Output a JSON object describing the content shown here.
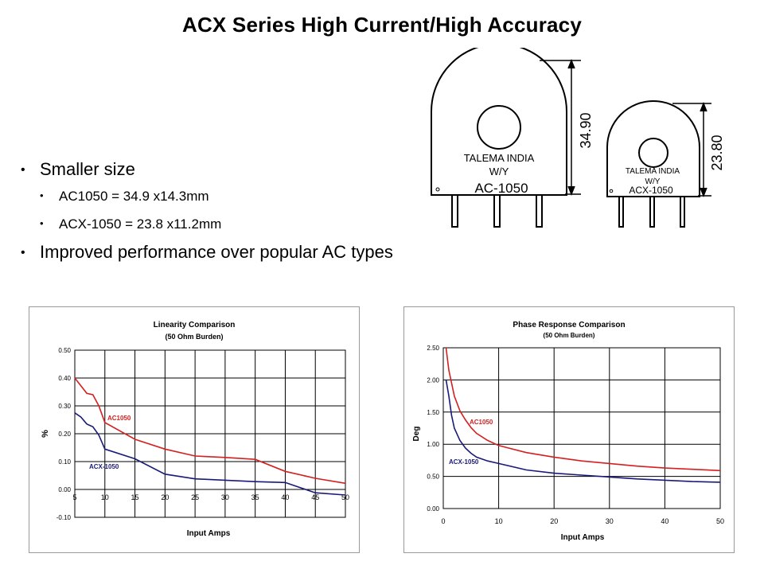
{
  "slide": {
    "title": "ACX Series High Current/High Accuracy",
    "bullets": [
      {
        "text": "Smaller size",
        "level": 1
      },
      {
        "text": "AC1050 = 34.9 x14.3mm",
        "level": 2
      },
      {
        "text": "ACX-1050 = 23.8 x11.2mm",
        "level": 2
      },
      {
        "text": "Improved performance over popular AC types",
        "level": 1
      }
    ]
  },
  "drawing": {
    "large": {
      "line1": "TALEMA INDIA",
      "line2": "W/Y",
      "model": "AC-1050",
      "dimension": "34.90"
    },
    "small": {
      "line1": "TALEMA INDIA",
      "line2": "W/Y",
      "model": "ACX-1050",
      "dimension": "23.80"
    }
  },
  "colors": {
    "ac1050": "#d42020",
    "acx1050": "#1a1a7a",
    "grid": "#000000"
  },
  "chart_data": [
    {
      "type": "line",
      "title": "Linearity Comparison",
      "subtitle": "(50 Ohm Burden)",
      "xlabel": "Input Amps",
      "ylabel": "%",
      "xlim": [
        5,
        50
      ],
      "ylim": [
        -0.1,
        0.5
      ],
      "xticks": [
        "5",
        "10",
        "15",
        "20",
        "25",
        "30",
        "35",
        "40",
        "45",
        "50"
      ],
      "yticks": [
        "0.50",
        "0.40",
        "0.30",
        "0.20",
        "0.10",
        "0.00",
        "-0.10"
      ],
      "grid": true,
      "series": [
        {
          "name": "AC1050",
          "color": "#d42020",
          "x": [
            5,
            7,
            8,
            9,
            10,
            15,
            20,
            25,
            30,
            35,
            40,
            45,
            50
          ],
          "y": [
            0.4,
            0.345,
            0.34,
            0.3,
            0.24,
            0.18,
            0.145,
            0.12,
            0.115,
            0.108,
            0.065,
            0.04,
            0.022
          ]
        },
        {
          "name": "ACX-1050",
          "color": "#1a1a7a",
          "x": [
            5,
            6,
            7,
            8,
            9,
            10,
            15,
            20,
            25,
            30,
            35,
            40,
            45,
            50
          ],
          "y": [
            0.275,
            0.26,
            0.235,
            0.225,
            0.195,
            0.145,
            0.11,
            0.055,
            0.038,
            0.033,
            0.028,
            0.025,
            -0.012,
            -0.02
          ]
        }
      ]
    },
    {
      "type": "line",
      "title": "Phase Response Comparison",
      "subtitle": "(50 Ohm Burden)",
      "xlabel": "Input Amps",
      "ylabel": "Deg",
      "xlim": [
        0,
        50
      ],
      "ylim": [
        0.0,
        2.5
      ],
      "xticks": [
        "0",
        "10",
        "20",
        "30",
        "40",
        "50"
      ],
      "yticks": [
        "2.50",
        "2.00",
        "1.50",
        "1.00",
        "0.50",
        "0.00"
      ],
      "grid": true,
      "series": [
        {
          "name": "AC1050",
          "color": "#d42020",
          "x": [
            0.5,
            1,
            2,
            3,
            4,
            5,
            6,
            8,
            10,
            15,
            20,
            25,
            30,
            35,
            40,
            45,
            50
          ],
          "y": [
            2.5,
            2.15,
            1.75,
            1.52,
            1.38,
            1.26,
            1.17,
            1.06,
            0.98,
            0.87,
            0.8,
            0.74,
            0.7,
            0.66,
            0.63,
            0.61,
            0.59
          ]
        },
        {
          "name": "ACX-1050",
          "color": "#1a1a7a",
          "x": [
            0.5,
            1,
            1.5,
            2,
            3,
            4,
            5,
            6,
            8,
            10,
            15,
            20,
            25,
            30,
            35,
            40,
            45,
            50
          ],
          "y": [
            2.0,
            1.75,
            1.45,
            1.25,
            1.06,
            0.94,
            0.86,
            0.8,
            0.74,
            0.7,
            0.6,
            0.55,
            0.52,
            0.49,
            0.46,
            0.44,
            0.42,
            0.41
          ]
        }
      ]
    }
  ]
}
